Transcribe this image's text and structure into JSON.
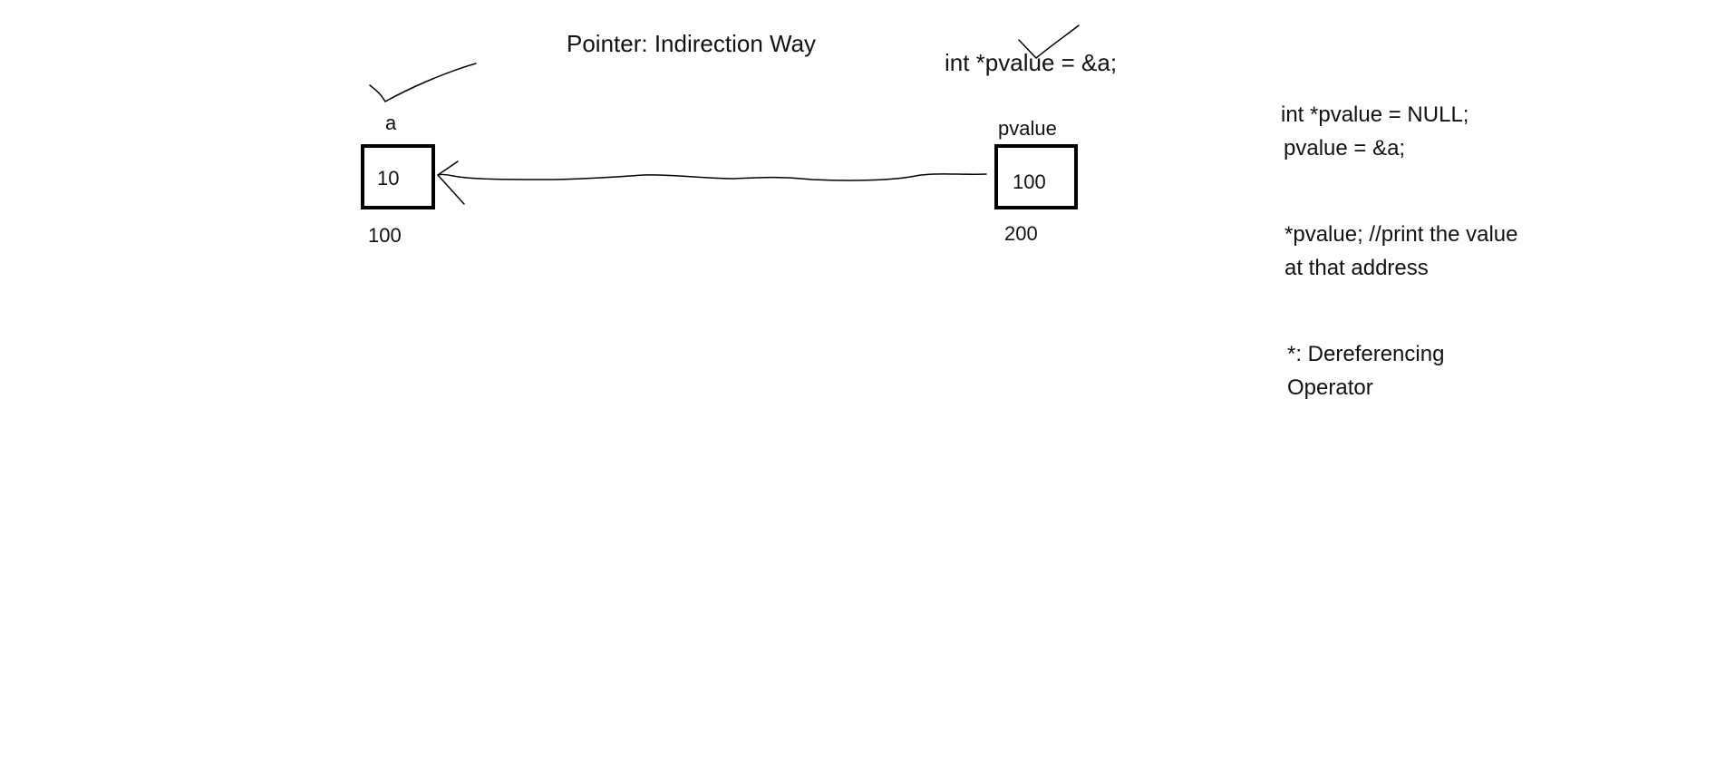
{
  "title": "Pointer: Indirection Way",
  "declaration": "int *pvalue = &a;",
  "variable_a": {
    "name": "a",
    "value": "10",
    "address": "100"
  },
  "pointer_pvalue": {
    "name": "pvalue",
    "value": "100",
    "address": "200"
  },
  "notes": {
    "line1": "int *pvalue = NULL;",
    "line2": "pvalue = &a;",
    "deref_line1": "*pvalue; //print the value",
    "deref_line2": "at that address",
    "op_line1": "*: Dereferencing",
    "op_line2": "Operator"
  },
  "colors": {
    "ink": "#000000",
    "background": "#ffffff"
  }
}
